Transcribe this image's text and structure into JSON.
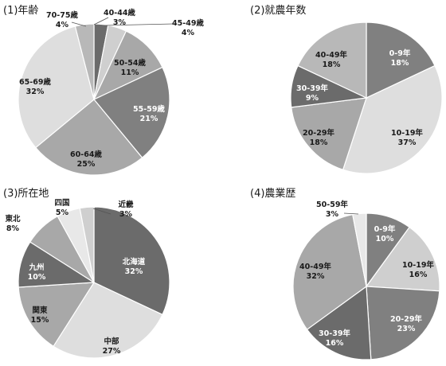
{
  "chart_data": [
    {
      "type": "pie",
      "title": "(1)年齢",
      "categories": [
        "40-44歳",
        "45-49歳",
        "50-54歳",
        "55-59歳",
        "60-64歳",
        "65-69歳",
        "70-75歳"
      ],
      "values": [
        3,
        4,
        11,
        21,
        25,
        32,
        4
      ],
      "labels": [
        "3%",
        "4%",
        "11%",
        "21%",
        "25%",
        "32%",
        "4%"
      ]
    },
    {
      "type": "pie",
      "title": "(2)就農年数",
      "categories": [
        "0-9年",
        "10-19年",
        "20-29年",
        "30-39年",
        "40-49年"
      ],
      "values": [
        18,
        37,
        18,
        9,
        18
      ],
      "labels": [
        "18%",
        "37%",
        "18%",
        "9%",
        "18%"
      ]
    },
    {
      "type": "pie",
      "title": "(3)所在地",
      "categories": [
        "北海道",
        "中部",
        "関東",
        "九州",
        "東北",
        "四国",
        "近畿"
      ],
      "values": [
        32,
        27,
        15,
        10,
        8,
        5,
        3
      ],
      "labels": [
        "32%",
        "27%",
        "15%",
        "10%",
        "8%",
        "5%",
        "3%"
      ]
    },
    {
      "type": "pie",
      "title": "(4)農業歴",
      "categories": [
        "0-9年",
        "10-19年",
        "20-29年",
        "30-39年",
        "40-49年",
        "50-59年"
      ],
      "values": [
        10,
        16,
        23,
        16,
        32,
        3
      ],
      "labels": [
        "10%",
        "16%",
        "23%",
        "16%",
        "32%",
        "3%"
      ]
    }
  ],
  "colors": {
    "c1": "#6b6b6b",
    "c2": "#cfcfcf",
    "c3": "#a8a8a8",
    "c4": "#808080",
    "c5": "#b8b8b8",
    "c6": "#dedede",
    "c7": "#e8e8e8",
    "edge": "#ffffff"
  }
}
